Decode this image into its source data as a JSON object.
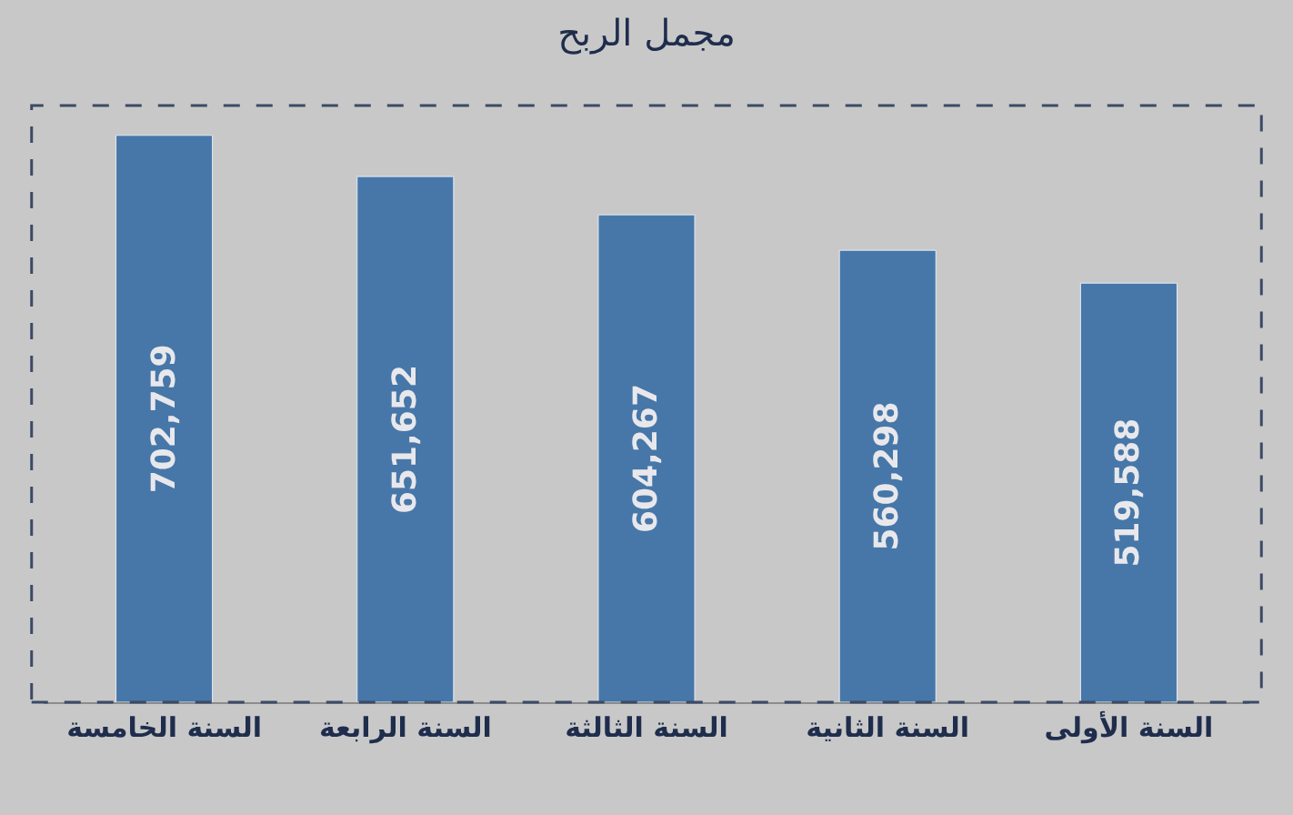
{
  "chart_data": {
    "type": "bar",
    "title": "مجمل الربح",
    "categories": [
      "السنة الخامسة",
      "السنة الرابعة",
      "السنة الثالثة",
      "السنة الثانية",
      "السنة الأولى"
    ],
    "values": [
      702759,
      651652,
      604267,
      560298,
      519588
    ],
    "color": "#4677a8",
    "value_labels": [
      "702,759",
      "651,652",
      "604,267",
      "560,298",
      "519,588"
    ],
    "tick_labels": "x",
    "grid": false,
    "legend": false
  }
}
